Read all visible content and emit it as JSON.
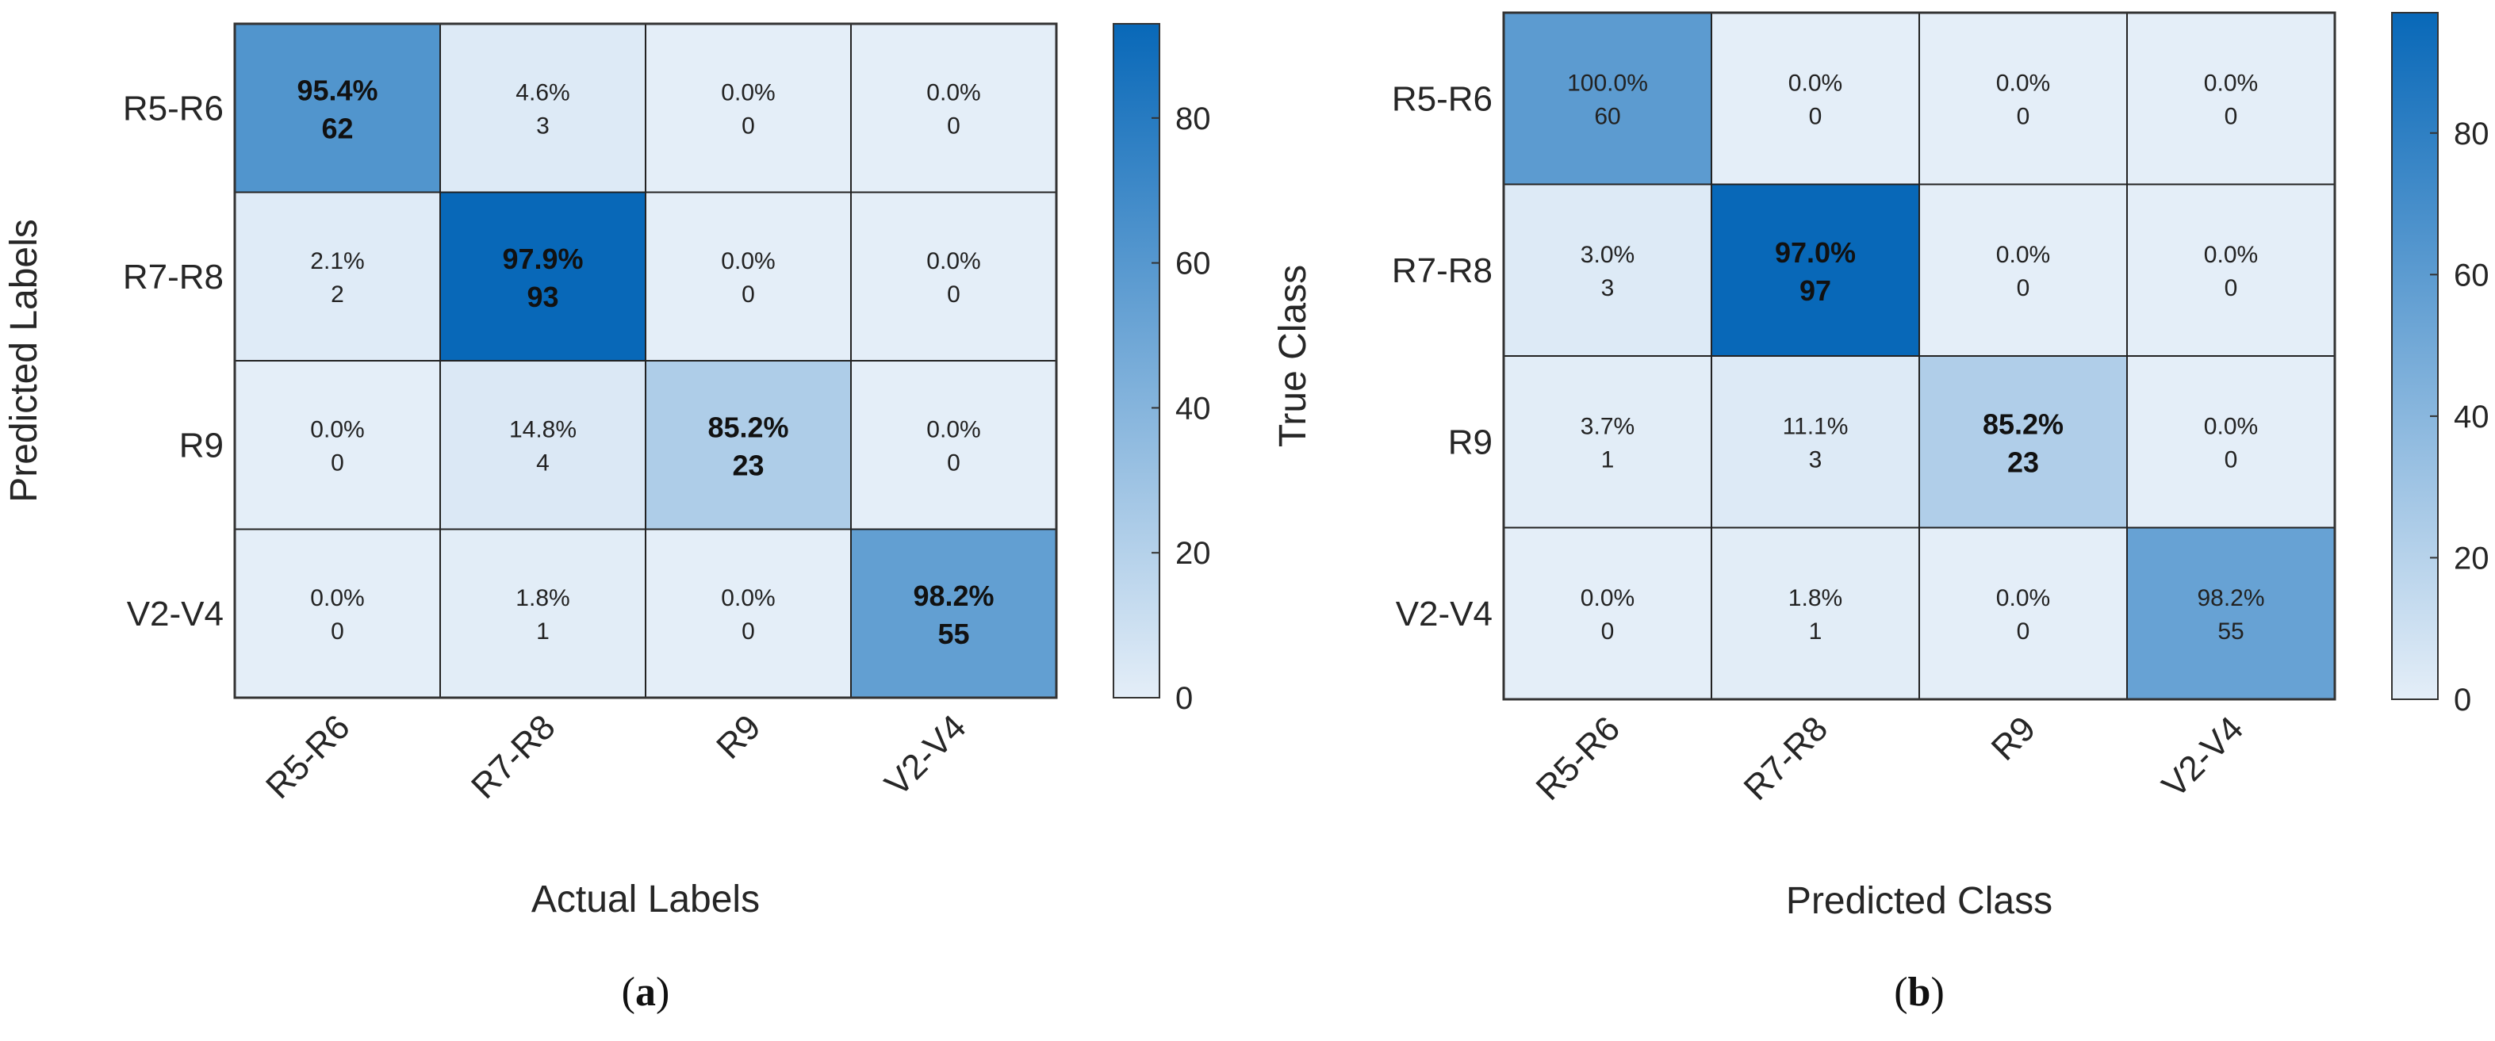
{
  "colors": {
    "scale_low": "#e4eef8",
    "scale_high": "#0868b8",
    "grid": "#222222",
    "frame": "#333333"
  },
  "chart_data": [
    {
      "type": "heatmap",
      "panel": "a",
      "caption": "a",
      "xlabel": "Actual Labels",
      "ylabel": "Predicted Labels",
      "x_categories": [
        "R5-R6",
        "R7-R8",
        "R9",
        "V2-V4"
      ],
      "y_categories": [
        "R5-R6",
        "R7-R8",
        "R9",
        "V2-V4"
      ],
      "percent": [
        [
          "95.4%",
          "4.6%",
          "0.0%",
          "0.0%"
        ],
        [
          "2.1%",
          "97.9%",
          "0.0%",
          "0.0%"
        ],
        [
          "0.0%",
          "14.8%",
          "85.2%",
          "0.0%"
        ],
        [
          "0.0%",
          "1.8%",
          "0.0%",
          "98.2%"
        ]
      ],
      "counts": [
        [
          62,
          3,
          0,
          0
        ],
        [
          2,
          93,
          0,
          0
        ],
        [
          0,
          4,
          23,
          0
        ],
        [
          0,
          1,
          0,
          55
        ]
      ],
      "color_values": [
        [
          62,
          3,
          0,
          0
        ],
        [
          2,
          93,
          0,
          0
        ],
        [
          0,
          4,
          23,
          0
        ],
        [
          0,
          1,
          0,
          55
        ]
      ],
      "bold_cells": [
        [
          0,
          0
        ],
        [
          1,
          1
        ],
        [
          2,
          2
        ],
        [
          3,
          3
        ]
      ],
      "colorbar": {
        "min": 0,
        "max": 93,
        "ticks": [
          0,
          20,
          40,
          60,
          80
        ]
      }
    },
    {
      "type": "heatmap",
      "panel": "b",
      "caption": "b",
      "xlabel": "Predicted Class",
      "ylabel": "True Class",
      "x_categories": [
        "R5-R6",
        "R7-R8",
        "R9",
        "V2-V4"
      ],
      "y_categories": [
        "R5-R6",
        "R7-R8",
        "R9",
        "V2-V4"
      ],
      "percent": [
        [
          "100.0%",
          "0.0%",
          "0.0%",
          "0.0%"
        ],
        [
          "3.0%",
          "97.0%",
          "0.0%",
          "0.0%"
        ],
        [
          "3.7%",
          "11.1%",
          "85.2%",
          "0.0%"
        ],
        [
          "0.0%",
          "1.8%",
          "0.0%",
          "98.2%"
        ]
      ],
      "counts": [
        [
          60,
          0,
          0,
          0
        ],
        [
          3,
          97,
          0,
          0
        ],
        [
          1,
          3,
          23,
          0
        ],
        [
          0,
          1,
          0,
          55
        ]
      ],
      "color_values": [
        [
          60,
          0,
          0,
          0
        ],
        [
          3,
          97,
          0,
          0
        ],
        [
          1,
          3,
          23,
          0
        ],
        [
          0,
          1,
          0,
          55
        ]
      ],
      "bold_cells": [
        [
          1,
          1
        ],
        [
          2,
          2
        ]
      ],
      "colorbar": {
        "min": 0,
        "max": 97,
        "ticks": [
          0,
          20,
          40,
          60,
          80
        ]
      }
    }
  ]
}
